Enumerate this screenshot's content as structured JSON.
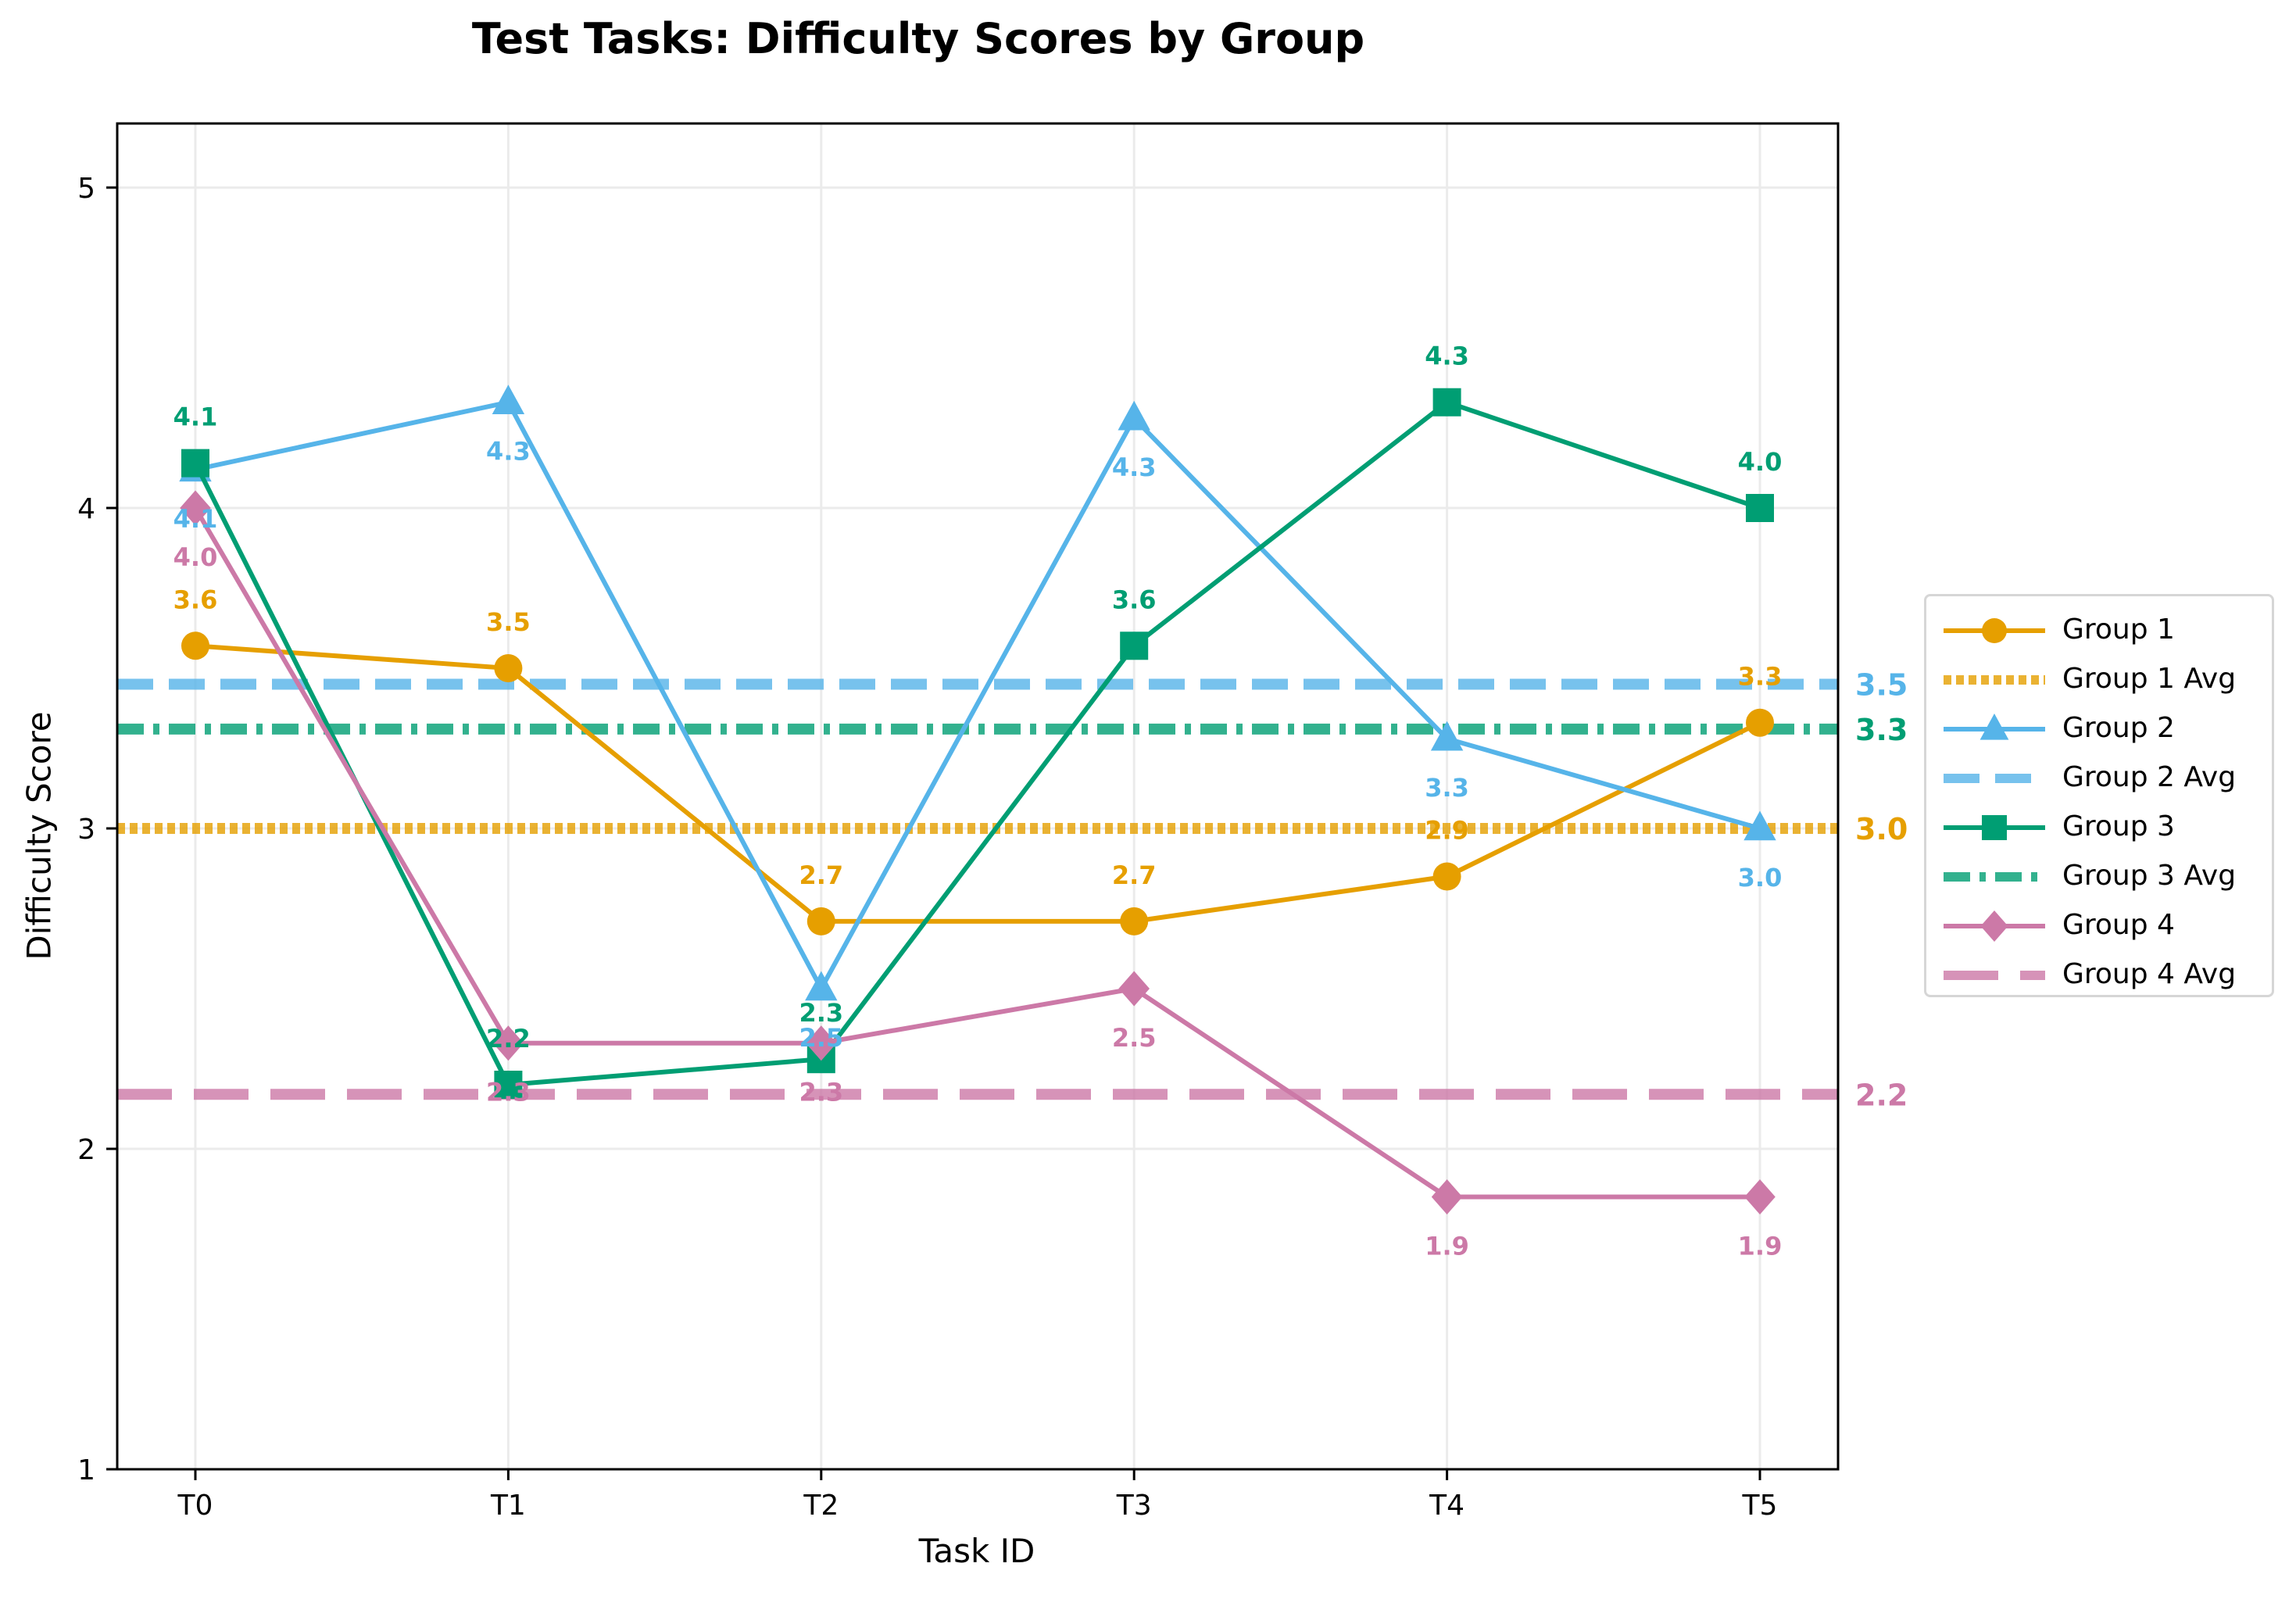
{
  "chart_data": {
    "type": "line",
    "title": "Test Tasks: Difficulty Scores by Group",
    "xlabel": "Task ID",
    "ylabel": "Difficulty Score",
    "categories": [
      "T0",
      "T1",
      "T2",
      "T3",
      "T4",
      "T5"
    ],
    "ylim": [
      1,
      5.2
    ],
    "yticks": [
      1,
      2,
      3,
      4,
      5
    ],
    "grid": true,
    "legend_position": "center right, outside plot",
    "series": [
      {
        "name": "Group 1",
        "color": "#E69F00",
        "marker": "circle",
        "values": [
          3.57,
          3.5,
          2.71,
          2.71,
          2.85,
          3.33
        ],
        "labels": [
          "3.6",
          "3.5",
          "2.7",
          "2.7",
          "2.9",
          "3.3"
        ],
        "avg": 3.0,
        "avg_label": "3.0",
        "avg_name": "Group 1 Avg",
        "avg_style": "dotted",
        "avg_color": "#E69F00"
      },
      {
        "name": "Group 2",
        "color": "#56B4E9",
        "marker": "triangle",
        "values": [
          4.12,
          4.33,
          2.5,
          4.28,
          3.28,
          3.0
        ],
        "labels": [
          "4.1",
          "4.3",
          "2.5",
          "4.3",
          "3.3",
          "3.0"
        ],
        "avg": 3.45,
        "avg_label": "3.5",
        "avg_name": "Group 2 Avg",
        "avg_style": "dashed",
        "avg_color": "#56B4E9"
      },
      {
        "name": "Group 3",
        "color": "#009E73",
        "marker": "square",
        "values": [
          4.14,
          2.2,
          2.28,
          3.57,
          4.33,
          4.0
        ],
        "labels": [
          "4.1",
          "2.2",
          "2.3",
          "3.6",
          "4.3",
          "4.0"
        ],
        "avg": 3.31,
        "avg_label": "3.3",
        "avg_name": "Group 3 Avg",
        "avg_style": "dashdot",
        "avg_color": "#009E73"
      },
      {
        "name": "Group 4",
        "color": "#CC79A7",
        "marker": "diamond",
        "values": [
          4.0,
          2.33,
          2.33,
          2.5,
          1.85,
          1.85
        ],
        "labels": [
          "4.0",
          "2.3",
          "2.3",
          "2.5",
          "1.9",
          "1.9"
        ],
        "avg": 2.17,
        "avg_label": "2.2",
        "avg_name": "Group 4 Avg",
        "avg_style": "longdash",
        "avg_color": "#CC79A7"
      }
    ]
  }
}
